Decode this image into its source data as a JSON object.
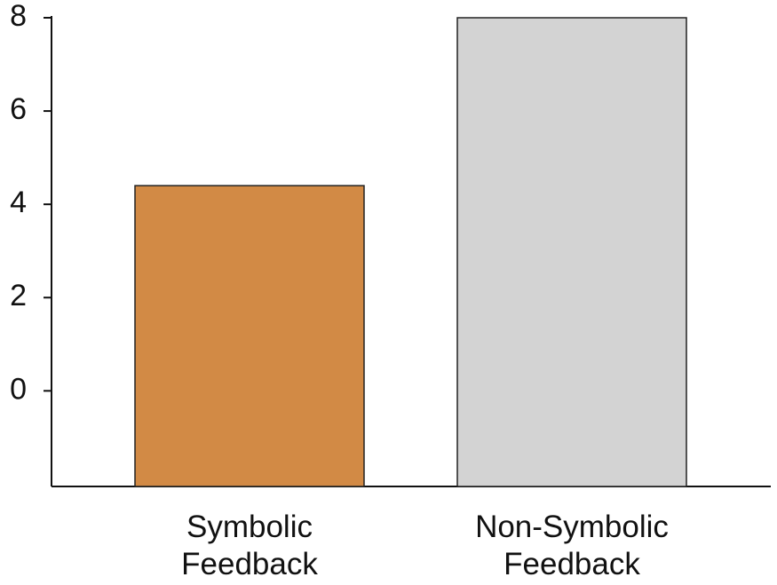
{
  "chart_data": {
    "type": "bar",
    "categories": [
      "Symbolic Feedback",
      "Non-Symbolic Feedback"
    ],
    "values": [
      4.4,
      8
    ],
    "colors": [
      "#d28a45",
      "#d3d3d3"
    ],
    "ylim": [
      -2.05,
      8
    ],
    "yticks": [
      0,
      2,
      4,
      6,
      8
    ],
    "grid": false
  }
}
